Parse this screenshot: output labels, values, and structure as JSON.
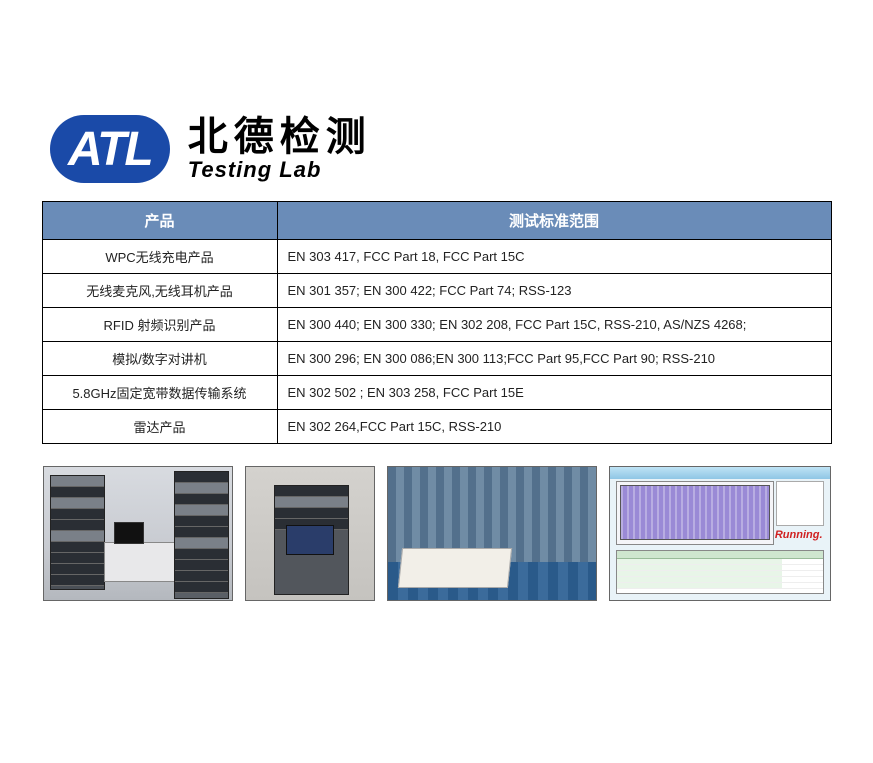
{
  "logo": {
    "badge_text": "ATL",
    "cn": "北德检测",
    "en": "Testing Lab"
  },
  "table": {
    "headers": {
      "product": "产品",
      "standards": "测试标准范围"
    },
    "rows": [
      {
        "product": "WPC无线充电产品",
        "standards": "EN 303 417, FCC Part 18, FCC Part 15C"
      },
      {
        "product": "无线麦克风,无线耳机产品",
        "standards": "EN 301 357; EN 300 422; FCC Part 74; RSS-123"
      },
      {
        "product": "RFID 射频识别产品",
        "standards": "EN 300 440; EN 300 330; EN 302 208, FCC Part 15C, RSS-210, AS/NZS 4268;"
      },
      {
        "product": "模拟/数字对讲机",
        "standards": "EN 300 296; EN 300 086;EN 300 113;FCC Part 95,FCC Part 90; RSS-210"
      },
      {
        "product": "5.8GHz固定宽带数据传输系统",
        "standards": "EN 302 502 ; EN 303 258, FCC Part 15E"
      },
      {
        "product": "雷达产品",
        "standards": "EN 302 264,FCC Part 15C, RSS-210"
      }
    ]
  },
  "screenshot": {
    "status_text": "Running."
  },
  "colors": {
    "header_bg": "#6a8cb8",
    "logo_bg": "#1a4aa8",
    "border": "#000000"
  }
}
